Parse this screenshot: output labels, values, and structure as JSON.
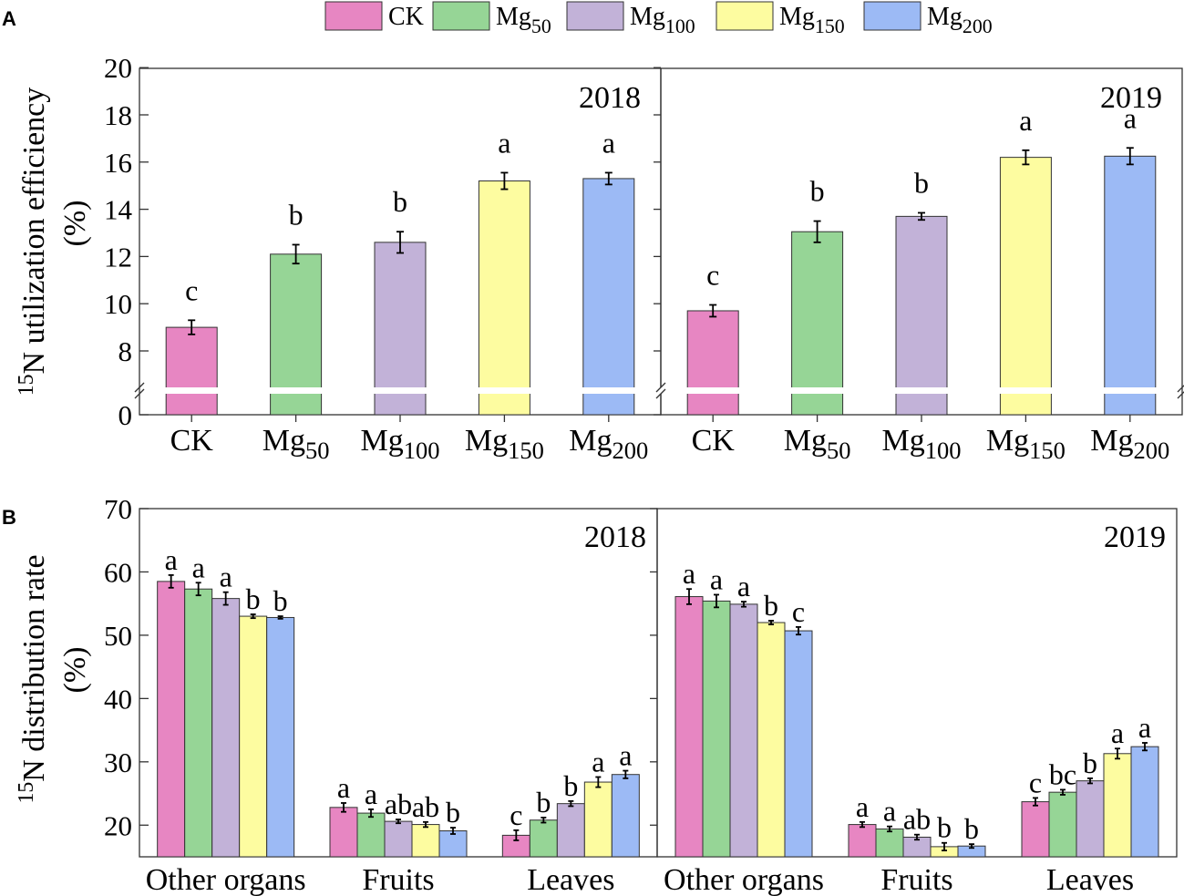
{
  "panel_labels": [
    "A",
    "B"
  ],
  "legend": [
    {
      "base": "CK",
      "sub": ""
    },
    {
      "base": "Mg",
      "sub": "50"
    },
    {
      "base": "Mg",
      "sub": "100"
    },
    {
      "base": "Mg",
      "sub": "150"
    },
    {
      "base": "Mg",
      "sub": "200"
    }
  ],
  "colors": [
    "#e786c2",
    "#96d596",
    "#c2b2d8",
    "#fdfca0",
    "#9cbaf5"
  ],
  "chart_data": [
    {
      "id": "A",
      "type": "bar",
      "ylabel": {
        "sup": "15",
        "text": "N utilization efficiency",
        "line2": "(%)"
      },
      "y_ticks": [
        "0",
        "8",
        "10",
        "12",
        "14",
        "16",
        "18",
        "20"
      ],
      "ylim": [
        0,
        20
      ],
      "y_break": [
        0,
        7
      ],
      "categories": [
        {
          "base": "CK",
          "sub": ""
        },
        {
          "base": "Mg",
          "sub": "50"
        },
        {
          "base": "Mg",
          "sub": "100"
        },
        {
          "base": "Mg",
          "sub": "150"
        },
        {
          "base": "Mg",
          "sub": "200"
        }
      ],
      "panels": [
        {
          "year": "2018",
          "values": [
            9.0,
            12.1,
            12.6,
            15.2,
            15.3
          ],
          "errors": [
            0.3,
            0.4,
            0.45,
            0.35,
            0.25
          ],
          "letters": [
            "c",
            "b",
            "b",
            "a",
            "a"
          ]
        },
        {
          "year": "2019",
          "values": [
            9.7,
            13.05,
            13.7,
            16.2,
            16.25
          ],
          "errors": [
            0.25,
            0.45,
            0.15,
            0.3,
            0.35
          ],
          "letters": [
            "c",
            "b",
            "b",
            "a",
            "a"
          ]
        }
      ]
    },
    {
      "id": "B",
      "type": "bar",
      "ylabel": {
        "sup": "15",
        "text": "N distribution rate",
        "line2": "(%)"
      },
      "y_ticks": [
        "20",
        "30",
        "40",
        "50",
        "60",
        "70"
      ],
      "ylim": [
        15,
        70
      ],
      "groups": [
        "Other organs",
        "Fruits",
        "Leaves"
      ],
      "series_names": [
        "CK",
        "Mg50",
        "Mg100",
        "Mg150",
        "Mg200"
      ],
      "panels": [
        {
          "year": "2018",
          "values": [
            [
              58.5,
              57.3,
              55.8,
              53.0,
              52.8
            ],
            [
              22.8,
              21.9,
              20.6,
              20.1,
              19.1
            ],
            [
              18.4,
              20.8,
              23.4,
              26.8,
              28.0
            ]
          ],
          "errors": [
            [
              1.0,
              1.0,
              1.0,
              0.3,
              0.2
            ],
            [
              0.7,
              0.6,
              0.3,
              0.4,
              0.5
            ],
            [
              0.8,
              0.4,
              0.4,
              0.8,
              0.6
            ]
          ],
          "letters": [
            [
              "a",
              "a",
              "a",
              "b",
              "b"
            ],
            [
              "a",
              "a",
              "ab",
              "ab",
              "b"
            ],
            [
              "c",
              "b",
              "b",
              "a",
              "a"
            ]
          ]
        },
        {
          "year": "2019",
          "values": [
            [
              56.1,
              55.4,
              54.9,
              52.0,
              50.7
            ],
            [
              20.1,
              19.4,
              18.1,
              16.6,
              16.7
            ],
            [
              23.7,
              25.2,
              27.0,
              31.3,
              32.4
            ]
          ],
          "errors": [
            [
              1.2,
              1.0,
              0.4,
              0.3,
              0.6
            ],
            [
              0.4,
              0.4,
              0.4,
              0.6,
              0.3
            ],
            [
              0.6,
              0.4,
              0.4,
              0.8,
              0.6
            ]
          ],
          "letters": [
            [
              "a",
              "a",
              "a",
              "b",
              "c"
            ],
            [
              "a",
              "a",
              "ab",
              "b",
              "b"
            ],
            [
              "c",
              "bc",
              "b",
              "a",
              "a"
            ]
          ]
        }
      ]
    }
  ]
}
